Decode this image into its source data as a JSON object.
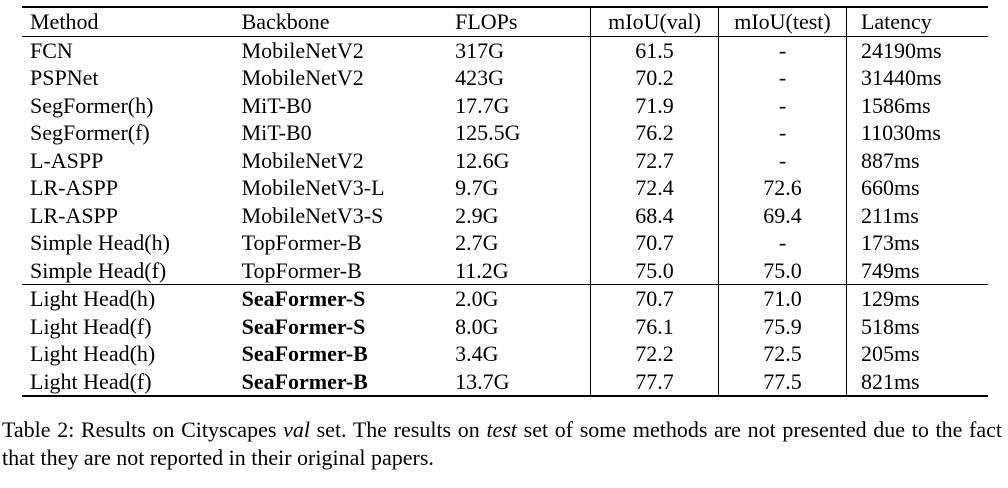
{
  "table": {
    "headers": {
      "method": "Method",
      "backbone": "Backbone",
      "flops": "FLOPs",
      "miou_val": "mIoU(val)",
      "miou_test": "mIoU(test)",
      "latency": "Latency"
    },
    "rows": [
      {
        "method": "FCN",
        "backbone": "MobileNetV2",
        "flops": "317G",
        "miou_val": "61.5",
        "miou_test": "-",
        "latency": "24190ms"
      },
      {
        "method": "PSPNet",
        "backbone": "MobileNetV2",
        "flops": "423G",
        "miou_val": "70.2",
        "miou_test": "-",
        "latency": "31440ms"
      },
      {
        "method": "SegFormer(h)",
        "backbone": "MiT-B0",
        "flops": "17.7G",
        "miou_val": "71.9",
        "miou_test": "-",
        "latency": "1586ms"
      },
      {
        "method": "SegFormer(f)",
        "backbone": "MiT-B0",
        "flops": "125.5G",
        "miou_val": "76.2",
        "miou_test": "-",
        "latency": "11030ms"
      },
      {
        "method": "L-ASPP",
        "backbone": "MobileNetV2",
        "flops": "12.6G",
        "miou_val": "72.7",
        "miou_test": "-",
        "latency": "887ms"
      },
      {
        "method": "LR-ASPP",
        "backbone": "MobileNetV3-L",
        "flops": "9.7G",
        "miou_val": "72.4",
        "miou_test": "72.6",
        "latency": "660ms"
      },
      {
        "method": "LR-ASPP",
        "backbone": "MobileNetV3-S",
        "flops": "2.9G",
        "miou_val": "68.4",
        "miou_test": "69.4",
        "latency": "211ms"
      },
      {
        "method": "Simple Head(h)",
        "backbone": "TopFormer-B",
        "flops": "2.7G",
        "miou_val": "70.7",
        "miou_test": "-",
        "latency": "173ms"
      },
      {
        "method": "Simple Head(f)",
        "backbone": "TopFormer-B",
        "flops": "11.2G",
        "miou_val": "75.0",
        "miou_test": "75.0",
        "latency": "749ms"
      },
      {
        "method": "Light Head(h)",
        "backbone": "SeaFormer-S",
        "flops": "2.0G",
        "miou_val": "70.7",
        "miou_test": "71.0",
        "latency": "129ms"
      },
      {
        "method": "Light Head(f)",
        "backbone": "SeaFormer-S",
        "flops": "8.0G",
        "miou_val": "76.1",
        "miou_test": "75.9",
        "latency": "518ms"
      },
      {
        "method": "Light Head(h)",
        "backbone": "SeaFormer-B",
        "flops": "3.4G",
        "miou_val": "72.2",
        "miou_test": "72.5",
        "latency": "205ms"
      },
      {
        "method": "Light Head(f)",
        "backbone": "SeaFormer-B",
        "flops": "13.7G",
        "miou_val": "77.7",
        "miou_test": "77.5",
        "latency": "821ms"
      }
    ]
  },
  "caption": {
    "part1": "Table 2: Results on Cityscapes ",
    "em1": "val",
    "part2": " set. The results on ",
    "em2": "test",
    "part3": " set of some methods are not presented due to the fact that they are not reported in their original papers."
  }
}
